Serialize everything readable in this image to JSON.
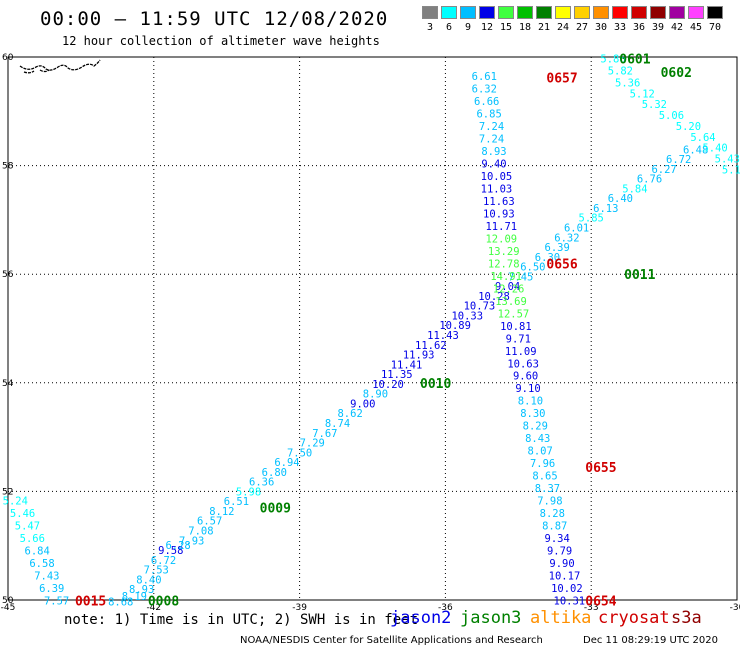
{
  "title": "00:00 – 11:59 UTC 12/08/2020",
  "subtitle": "12 hour collection of altimeter wave heights",
  "colorbar": [
    {
      "label": "3",
      "color": "#808080"
    },
    {
      "label": "6",
      "color": "#00ffff"
    },
    {
      "label": "9",
      "color": "#00bfff"
    },
    {
      "label": "12",
      "color": "#0000e6"
    },
    {
      "label": "15",
      "color": "#40ff40"
    },
    {
      "label": "18",
      "color": "#00c000"
    },
    {
      "label": "21",
      "color": "#008000"
    },
    {
      "label": "24",
      "color": "#ffff00"
    },
    {
      "label": "27",
      "color": "#ffd000"
    },
    {
      "label": "30",
      "color": "#ff9000"
    },
    {
      "label": "33",
      "color": "#ff0000"
    },
    {
      "label": "36",
      "color": "#d00000"
    },
    {
      "label": "39",
      "color": "#900000"
    },
    {
      "label": "42",
      "color": "#a000a0"
    },
    {
      "label": "45",
      "color": "#ff40ff"
    },
    {
      "label": "70",
      "color": "#000000"
    }
  ],
  "note": "note: 1) Time is in UTC; 2) SWH is in feet",
  "satellites": [
    {
      "name": "jason2",
      "color": "#0000e6"
    },
    {
      "name": "jason3",
      "color": "#008000"
    },
    {
      "name": "altika",
      "color": "#ff9000"
    },
    {
      "name": "cryosat",
      "color": "#d00000"
    },
    {
      "name": "s3a",
      "color": "#900000"
    }
  ],
  "footer_left": "NOAA/NESDIS Center for Satellite Applications and Research",
  "footer_right": "Dec 11 08:29:19 UTC 2020",
  "chart_data": {
    "type": "scatter",
    "xlim": [
      -45,
      -30
    ],
    "ylim": [
      50,
      60
    ],
    "x_ticks": [
      "-45",
      "-42",
      "-39",
      "-36",
      "-33",
      "-30"
    ],
    "y_ticks": [
      "50",
      "52",
      "54",
      "56",
      "58",
      "60"
    ],
    "grid": true,
    "series": [
      {
        "points": [
          {
            "lon": -44.85,
            "lat": 51.83,
            "v": "5.24"
          },
          {
            "lon": -44.7,
            "lat": 51.6,
            "v": "5.46"
          },
          {
            "lon": -44.6,
            "lat": 51.37,
            "v": "5.47"
          },
          {
            "lon": -44.5,
            "lat": 51.14,
            "v": "5.66"
          },
          {
            "lon": -44.4,
            "lat": 50.91,
            "v": "6.84"
          },
          {
            "lon": -44.3,
            "lat": 50.68,
            "v": "6.58"
          },
          {
            "lon": -44.2,
            "lat": 50.45,
            "v": "7.43"
          },
          {
            "lon": -44.1,
            "lat": 50.22,
            "v": "6.39"
          },
          {
            "lon": -44.0,
            "lat": 49.99,
            "v": "7.57"
          },
          {
            "lon": -42.68,
            "lat": 49.97,
            "v": "8.68"
          },
          {
            "lon": -42.4,
            "lat": 50.07,
            "v": "8.19"
          },
          {
            "lon": -42.25,
            "lat": 50.2,
            "v": "8.93"
          },
          {
            "lon": -42.1,
            "lat": 50.38,
            "v": "8.40"
          },
          {
            "lon": -41.95,
            "lat": 50.56,
            "v": "7.53"
          },
          {
            "lon": -41.8,
            "lat": 50.74,
            "v": "6.72"
          },
          {
            "lon": -41.65,
            "lat": 50.92,
            "v": "9.58"
          },
          {
            "lon": -41.5,
            "lat": 51.01,
            "v": "6.28"
          },
          {
            "lon": -41.22,
            "lat": 51.1,
            "v": "7.93"
          },
          {
            "lon": -41.03,
            "lat": 51.28,
            "v": "7.08"
          },
          {
            "lon": -40.85,
            "lat": 51.46,
            "v": "6.57"
          },
          {
            "lon": -40.6,
            "lat": 51.64,
            "v": "8.12"
          },
          {
            "lon": -40.3,
            "lat": 51.82,
            "v": "6.51"
          },
          {
            "lon": -40.05,
            "lat": 52.0,
            "v": "5.98"
          },
          {
            "lon": -39.78,
            "lat": 52.18,
            "v": "6.36"
          },
          {
            "lon": -39.52,
            "lat": 52.36,
            "v": "6.80"
          },
          {
            "lon": -39.26,
            "lat": 52.54,
            "v": "6.94"
          },
          {
            "lon": -39.0,
            "lat": 52.72,
            "v": "7.50"
          },
          {
            "lon": -38.74,
            "lat": 52.9,
            "v": "7.29"
          },
          {
            "lon": -38.48,
            "lat": 53.08,
            "v": "7.67"
          },
          {
            "lon": -38.22,
            "lat": 53.26,
            "v": "8.74"
          },
          {
            "lon": -37.96,
            "lat": 53.44,
            "v": "8.62"
          },
          {
            "lon": -37.7,
            "lat": 53.62,
            "v": "9.00"
          },
          {
            "lon": -37.44,
            "lat": 53.8,
            "v": "8.90"
          },
          {
            "lon": -37.18,
            "lat": 53.98,
            "v": "10.20"
          },
          {
            "lon": -37.0,
            "lat": 54.16,
            "v": "11.35"
          },
          {
            "lon": -36.8,
            "lat": 54.34,
            "v": "11.41"
          },
          {
            "lon": -36.55,
            "lat": 54.52,
            "v": "11.93"
          },
          {
            "lon": -36.3,
            "lat": 54.7,
            "v": "11.62"
          },
          {
            "lon": -36.05,
            "lat": 54.88,
            "v": "11.43"
          },
          {
            "lon": -35.8,
            "lat": 55.06,
            "v": "10.89"
          },
          {
            "lon": -35.55,
            "lat": 55.24,
            "v": "10.33"
          },
          {
            "lon": -35.3,
            "lat": 55.42,
            "v": "10.73"
          },
          {
            "lon": -35.0,
            "lat": 55.6,
            "v": "10.28"
          },
          {
            "lon": -34.72,
            "lat": 55.78,
            "v": "9.04"
          },
          {
            "lon": -34.45,
            "lat": 55.96,
            "v": "7.45"
          },
          {
            "lon": -34.2,
            "lat": 56.14,
            "v": "6.50"
          },
          {
            "lon": -33.9,
            "lat": 56.32,
            "v": "6.30"
          },
          {
            "lon": -33.7,
            "lat": 56.5,
            "v": "6.39"
          },
          {
            "lon": -33.5,
            "lat": 56.68,
            "v": "6.32"
          },
          {
            "lon": -33.3,
            "lat": 56.86,
            "v": "6.01"
          },
          {
            "lon": -33.0,
            "lat": 57.04,
            "v": "5.85"
          },
          {
            "lon": -32.7,
            "lat": 57.22,
            "v": "6.13"
          },
          {
            "lon": -32.4,
            "lat": 57.4,
            "v": "6.40"
          },
          {
            "lon": -32.1,
            "lat": 57.58,
            "v": "5.84"
          },
          {
            "lon": -31.8,
            "lat": 57.76,
            "v": "6.76"
          },
          {
            "lon": -31.5,
            "lat": 57.94,
            "v": "6.27"
          },
          {
            "lon": -31.2,
            "lat": 58.12,
            "v": "6.72"
          },
          {
            "lon": -30.85,
            "lat": 58.3,
            "v": "6.48"
          },
          {
            "lon": -35.2,
            "lat": 59.65,
            "v": "6.61"
          },
          {
            "lon": -35.2,
            "lat": 59.42,
            "v": "6.32"
          },
          {
            "lon": -35.15,
            "lat": 59.19,
            "v": "6.66"
          },
          {
            "lon": -35.1,
            "lat": 58.96,
            "v": "6.85"
          },
          {
            "lon": -35.05,
            "lat": 58.73,
            "v": "7.24"
          },
          {
            "lon": -35.05,
            "lat": 58.5,
            "v": "7.24"
          },
          {
            "lon": -35.0,
            "lat": 58.27,
            "v": "8.93"
          },
          {
            "lon": -35.0,
            "lat": 58.04,
            "v": "9.40"
          },
          {
            "lon": -34.95,
            "lat": 57.81,
            "v": "10.05"
          },
          {
            "lon": -34.95,
            "lat": 57.58,
            "v": "11.03"
          },
          {
            "lon": -34.9,
            "lat": 57.35,
            "v": "11.63"
          },
          {
            "lon": -34.9,
            "lat": 57.12,
            "v": "10.93"
          },
          {
            "lon": -34.85,
            "lat": 56.89,
            "v": "11.71"
          },
          {
            "lon": -34.85,
            "lat": 56.66,
            "v": "12.09"
          },
          {
            "lon": -34.8,
            "lat": 56.43,
            "v": "13.29"
          },
          {
            "lon": -34.8,
            "lat": 56.2,
            "v": "12.78"
          },
          {
            "lon": -34.75,
            "lat": 55.97,
            "v": "14.91"
          },
          {
            "lon": -34.7,
            "lat": 55.74,
            "v": "12.26"
          },
          {
            "lon": -34.65,
            "lat": 55.51,
            "v": "13.69"
          },
          {
            "lon": -34.6,
            "lat": 55.28,
            "v": "12.57"
          },
          {
            "lon": -34.55,
            "lat": 55.05,
            "v": "10.81"
          },
          {
            "lon": -34.5,
            "lat": 54.82,
            "v": "9.71"
          },
          {
            "lon": -34.45,
            "lat": 54.59,
            "v": "11.09"
          },
          {
            "lon": -34.4,
            "lat": 54.36,
            "v": "10.63"
          },
          {
            "lon": -34.35,
            "lat": 54.13,
            "v": "9.60"
          },
          {
            "lon": -34.3,
            "lat": 53.9,
            "v": "9.10"
          },
          {
            "lon": -34.25,
            "lat": 53.67,
            "v": "8.10"
          },
          {
            "lon": -34.2,
            "lat": 53.44,
            "v": "8.30"
          },
          {
            "lon": -34.15,
            "lat": 53.21,
            "v": "8.29"
          },
          {
            "lon": -34.1,
            "lat": 52.98,
            "v": "8.43"
          },
          {
            "lon": -34.05,
            "lat": 52.75,
            "v": "8.07"
          },
          {
            "lon": -34.0,
            "lat": 52.52,
            "v": "7.96"
          },
          {
            "lon": -33.95,
            "lat": 52.29,
            "v": "8.65"
          },
          {
            "lon": -33.9,
            "lat": 52.06,
            "v": "8.37"
          },
          {
            "lon": -33.85,
            "lat": 51.83,
            "v": "7.98"
          },
          {
            "lon": -33.8,
            "lat": 51.6,
            "v": "8.28"
          },
          {
            "lon": -33.75,
            "lat": 51.37,
            "v": "8.87"
          },
          {
            "lon": -33.7,
            "lat": 51.14,
            "v": "9.34"
          },
          {
            "lon": -33.65,
            "lat": 50.91,
            "v": "9.79"
          },
          {
            "lon": -33.6,
            "lat": 50.68,
            "v": "9.90"
          },
          {
            "lon": -33.55,
            "lat": 50.45,
            "v": "10.17"
          },
          {
            "lon": -33.5,
            "lat": 50.22,
            "v": "10.02"
          },
          {
            "lon": -33.45,
            "lat": 49.99,
            "v": "10.31"
          },
          {
            "lon": -32.55,
            "lat": 59.97,
            "v": "5.86"
          },
          {
            "lon": -32.4,
            "lat": 59.75,
            "v": "5.82"
          },
          {
            "lon": -32.25,
            "lat": 59.53,
            "v": "5.36"
          },
          {
            "lon": -31.95,
            "lat": 59.33,
            "v": "5.12"
          },
          {
            "lon": -31.7,
            "lat": 59.13,
            "v": "5.32"
          },
          {
            "lon": -31.35,
            "lat": 58.93,
            "v": "5.06"
          },
          {
            "lon": -31.0,
            "lat": 58.73,
            "v": "5.20"
          },
          {
            "lon": -30.7,
            "lat": 58.53,
            "v": "5.64"
          },
          {
            "lon": -30.45,
            "lat": 58.33,
            "v": "5.40"
          },
          {
            "lon": -30.2,
            "lat": 58.13,
            "v": "5.43"
          },
          {
            "lon": -30.05,
            "lat": 57.93,
            "v": "5.11"
          }
        ]
      }
    ],
    "time_labels": [
      {
        "text": "0601",
        "lon": -32.1,
        "lat": 59.97,
        "color": "#008000"
      },
      {
        "text": "0602",
        "lon": -31.25,
        "lat": 59.72,
        "color": "#008000"
      },
      {
        "text": "0657",
        "lon": -33.6,
        "lat": 59.62,
        "color": "#d00000"
      },
      {
        "text": "0011",
        "lon": -32.0,
        "lat": 56.0,
        "color": "#008000"
      },
      {
        "text": "0656",
        "lon": -33.6,
        "lat": 56.2,
        "color": "#d00000"
      },
      {
        "text": "0010",
        "lon": -36.2,
        "lat": 54.0,
        "color": "#008000"
      },
      {
        "text": "0655",
        "lon": -32.8,
        "lat": 52.45,
        "color": "#d00000"
      },
      {
        "text": "0009",
        "lon": -39.5,
        "lat": 51.7,
        "color": "#008000"
      },
      {
        "text": "0015",
        "lon": -43.3,
        "lat": 49.99,
        "color": "#d00000"
      },
      {
        "text": "0008",
        "lon": -41.8,
        "lat": 49.99,
        "color": "#008000"
      },
      {
        "text": "0654",
        "lon": -32.8,
        "lat": 49.99,
        "color": "#d00000"
      }
    ]
  }
}
